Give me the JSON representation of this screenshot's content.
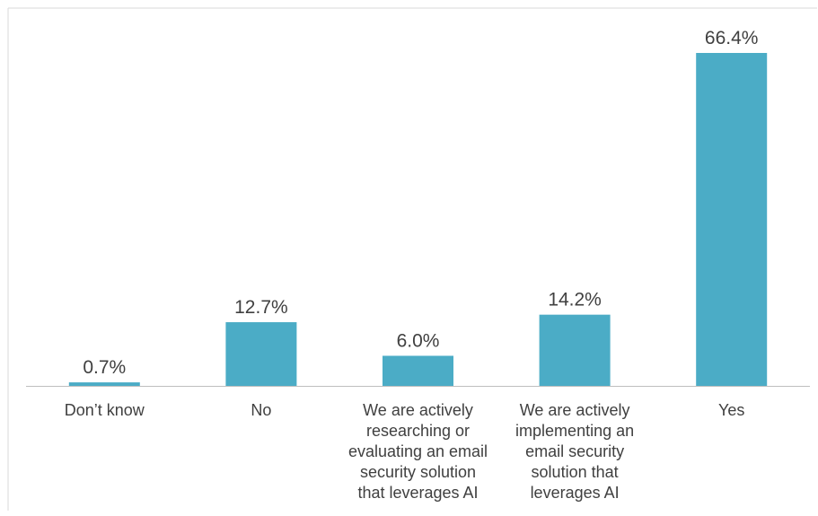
{
  "colors": {
    "bar": "#4BACC6",
    "text": "#404040",
    "axis": "#BFBFBF",
    "border": "#D9D9D9"
  },
  "chart_data": {
    "type": "bar",
    "title": "",
    "xlabel": "",
    "ylabel": "",
    "ylim": [
      0,
      70
    ],
    "grid": false,
    "legend": "none",
    "categories": [
      "Don’t know",
      "No",
      "We are actively researching or evaluating an email security solution that leverages AI",
      "We are actively implementing an email security solution that leverages AI",
      "Yes"
    ],
    "values": [
      0.7,
      12.7,
      6.0,
      14.2,
      66.4
    ],
    "value_labels": [
      "0.7%",
      "12.7%",
      "6.0%",
      "14.2%",
      "66.4%"
    ],
    "category_label_lines": [
      [
        "Don’t know"
      ],
      [
        "No"
      ],
      [
        "We are actively",
        "researching or",
        "evaluating an email",
        "security solution",
        "that leverages AI"
      ],
      [
        "We are actively",
        "implementing an",
        "email security",
        "solution that",
        "leverages AI"
      ],
      [
        "Yes"
      ]
    ]
  }
}
